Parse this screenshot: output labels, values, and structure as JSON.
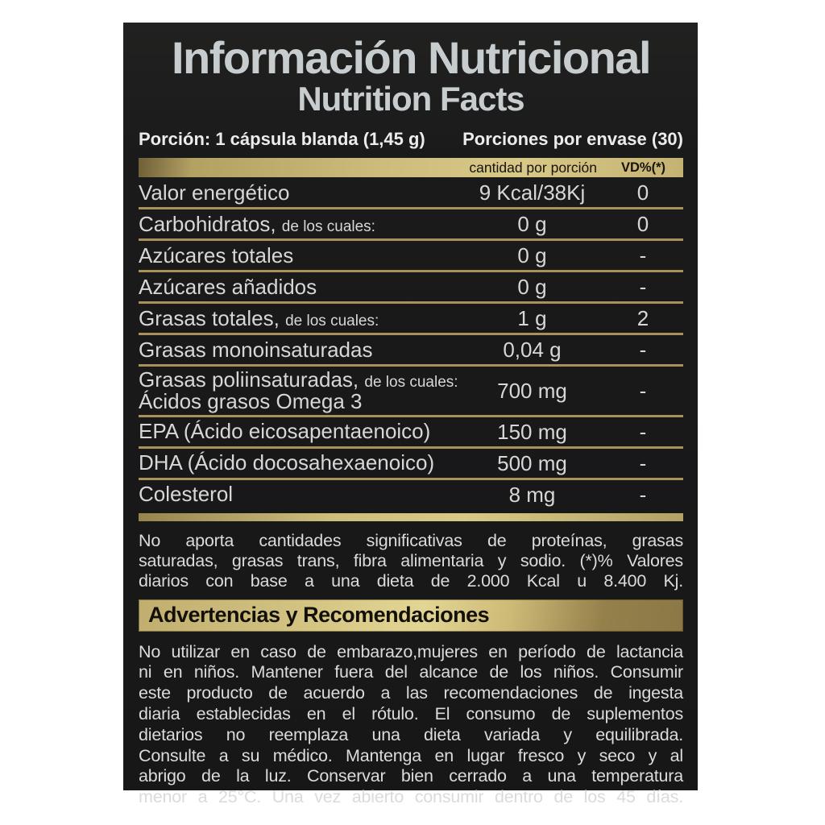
{
  "label": {
    "title": "Información Nutricional",
    "subtitle": "Nutrition Facts",
    "serving_size": "Porción: 1 cápsula blanda (1,45 g)",
    "servings_per_container": "Porciones por envase (30)",
    "columns": {
      "amount": "cantidad por porción",
      "dv": "VD%(*)"
    },
    "rows": [
      {
        "name": "Valor energético",
        "sub": "",
        "name2": "",
        "amount": "9 Kcal/38Kj",
        "dv": "0"
      },
      {
        "name": "Carbohidratos,",
        "sub": "de los cuales:",
        "name2": "",
        "amount": "0 g",
        "dv": "0"
      },
      {
        "name": "Azúcares totales",
        "sub": "",
        "name2": "",
        "amount": "0 g",
        "dv": "-"
      },
      {
        "name": "Azúcares añadidos",
        "sub": "",
        "name2": "",
        "amount": "0 g",
        "dv": "-"
      },
      {
        "name": "Grasas totales,",
        "sub": "de los cuales:",
        "name2": "",
        "amount": "1 g",
        "dv": "2"
      },
      {
        "name": "Grasas monoinsaturadas",
        "sub": "",
        "name2": "",
        "amount": "0,04 g",
        "dv": "-"
      },
      {
        "name": "Grasas poliinsaturadas,",
        "sub": "de los cuales:",
        "name2": "Ácidos grasos Omega 3",
        "amount": "700 mg",
        "dv": "-"
      },
      {
        "name": "EPA (Ácido eicosapentaenoico)",
        "sub": "",
        "name2": "",
        "amount": "150 mg",
        "dv": "-"
      },
      {
        "name": "DHA (Ácido docosahexaenoico)",
        "sub": "",
        "name2": "",
        "amount": "500 mg",
        "dv": "-"
      },
      {
        "name": "Colesterol",
        "sub": "",
        "name2": "",
        "amount": "8 mg",
        "dv": "-"
      }
    ],
    "footnote_lines": [
      "No aporta cantidades significativas de proteínas, grasas",
      "saturadas, grasas trans, fibra alimentaria y sodio. (*)% Valores",
      "diarios con base a una dieta de 2.000 Kcal u 8.400 Kj."
    ],
    "warnings_title": "Advertencias y Recomendaciones",
    "warnings_lines": [
      "No utilizar en caso de embarazo,mujeres en período de lactancia",
      "ni en niños. Mantener fuera del alcance de los niños. Consumir",
      "este producto de acuerdo a las recomendaciones de ingesta",
      "diaria establecidas en el rótulo. El consumo de suplementos",
      "dietarios no reemplaza una dieta variada y equilibrada.",
      "Consulte a su médico. Mantenga en lugar fresco y seco y al",
      "abrigo de la luz. Conservar bien cerrado a una temperatura",
      "menor a 25°C. Una vez abierto consumir dentro de los 45 días."
    ],
    "colors": {
      "panel_background": "#1a1a1b",
      "gold_accent": "#cdbc7c",
      "gold_rule": "#a9925a",
      "title_silver": "#c7cccf",
      "body_text": "#d6d8d6",
      "page_background": "#ffffff"
    }
  }
}
